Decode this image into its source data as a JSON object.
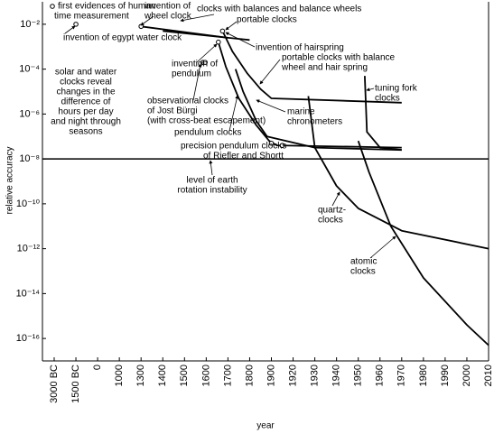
{
  "chart_data": {
    "type": "line",
    "x_label": "year",
    "y_label": "relative accuracy",
    "log_y": true,
    "color": "#000000",
    "xlim": [
      -3000,
      2010
    ],
    "ylim": [
      1e-17,
      0.1
    ],
    "xticks": [
      {
        "value": -3000,
        "label": "3000 BC"
      },
      {
        "value": -1500,
        "label": "1500 BC"
      },
      0,
      1000,
      1300,
      1400,
      1500,
      1600,
      1700,
      1800,
      1900,
      1920,
      1930,
      1940,
      1950,
      1960,
      1970,
      1980,
      1990,
      2000,
      2010
    ],
    "yticks": [
      {
        "value": 0.01,
        "label": "10⁻²"
      },
      {
        "value": 0.0001,
        "label": "10⁻⁴"
      },
      {
        "value": 1e-06,
        "label": "10⁻⁶"
      },
      {
        "value": 1e-08,
        "label": "10⁻⁸"
      },
      {
        "value": 1e-10,
        "label": "10⁻¹⁰"
      },
      {
        "value": 1e-12,
        "label": "10⁻¹²"
      },
      {
        "value": 1e-14,
        "label": "10⁻¹⁴"
      },
      {
        "value": 1e-16,
        "label": "10⁻¹⁶"
      }
    ],
    "reference_line": 1e-08,
    "series": [
      {
        "x": [
          1300,
          1700
        ],
        "values": [
          0.008,
          0.0025
        ]
      },
      {
        "x": [
          1400,
          1800
        ],
        "values": [
          0.005,
          0.002
        ]
      },
      {
        "x": [
          1656,
          1690,
          1750,
          1830,
          1890,
          1905,
          1970
        ],
        "values": [
          0.0016,
          0.00013,
          5e-06,
          3.2e-07,
          6.3e-08,
          4e-08,
          3.2e-08
        ]
      },
      {
        "x": [
          1675,
          1720,
          1790,
          1850,
          1900,
          1970
        ],
        "values": [
          0.005,
          0.00063,
          6.3e-05,
          1.3e-05,
          5e-06,
          3.2e-06
        ]
      },
      {
        "x": [
          1735,
          1770,
          1830,
          1880,
          1930,
          1970
        ],
        "values": [
          0.0001,
          1e-05,
          5e-07,
          1e-07,
          3.2e-08,
          2.5e-08
        ]
      },
      {
        "x": [
          1953,
          1954,
          1960,
          1970
        ],
        "values": [
          5e-05,
          1.6e-07,
          3.2e-08,
          2.5e-08
        ]
      },
      {
        "x": [
          1927,
          1930,
          1940,
          1950,
          1970,
          2010
        ],
        "values": [
          6.3e-06,
          3.2e-08,
          6.3e-10,
          6.3e-11,
          6.3e-12,
          1e-12
        ]
      },
      {
        "x": [
          1950,
          1955,
          1965,
          1980,
          2000,
          2010
        ],
        "values": [
          6.3e-08,
          2.5e-09,
          1e-11,
          5e-14,
          4e-16,
          5e-17
        ]
      }
    ],
    "markers": {
      "x": [
        -1500,
        1300,
        1656,
        1675,
        1585,
        1595,
        1900,
        1910
      ],
      "values": [
        0.01,
        0.008,
        0.0016,
        0.005,
        0.0002,
        0.0002,
        5e-08,
        4e-08
      ]
    },
    "annotations": [
      {
        "lines": [
          "first evidences of human",
          "time measurement"
        ]
      },
      {
        "lines": [
          "invention of egypt water clock"
        ]
      },
      {
        "lines": [
          "invention of",
          "wheel clock"
        ]
      },
      {
        "lines": [
          "clocks with balances and balance wheels"
        ]
      },
      {
        "lines": [
          "portable clocks"
        ]
      },
      {
        "lines": [
          "invention of hairspring"
        ]
      },
      {
        "lines": [
          "portable clocks with balance",
          "wheel and hair spring"
        ]
      },
      {
        "lines": [
          "invention of",
          "pendulum"
        ]
      },
      {
        "lines": [
          "solar and water",
          "clocks reveal",
          "changes in the",
          "difference of",
          "hours per day",
          "and night through",
          "seasons"
        ]
      },
      {
        "lines": [
          "observational clocks",
          "of Jost Bürgi",
          "(with cross-beat escapement)"
        ]
      },
      {
        "lines": [
          "tuning fork",
          "clocks"
        ]
      },
      {
        "lines": [
          "marine",
          "chronometers"
        ]
      },
      {
        "lines": [
          "pendulum clocks"
        ]
      },
      {
        "lines": [
          "precision pendulum clocks",
          "of Riefler and Shortt"
        ]
      },
      {
        "lines": [
          "level of earth",
          "rotation instability"
        ]
      },
      {
        "lines": [
          "quartz-",
          "clocks"
        ]
      },
      {
        "lines": [
          "atomic",
          "clocks"
        ]
      }
    ]
  }
}
